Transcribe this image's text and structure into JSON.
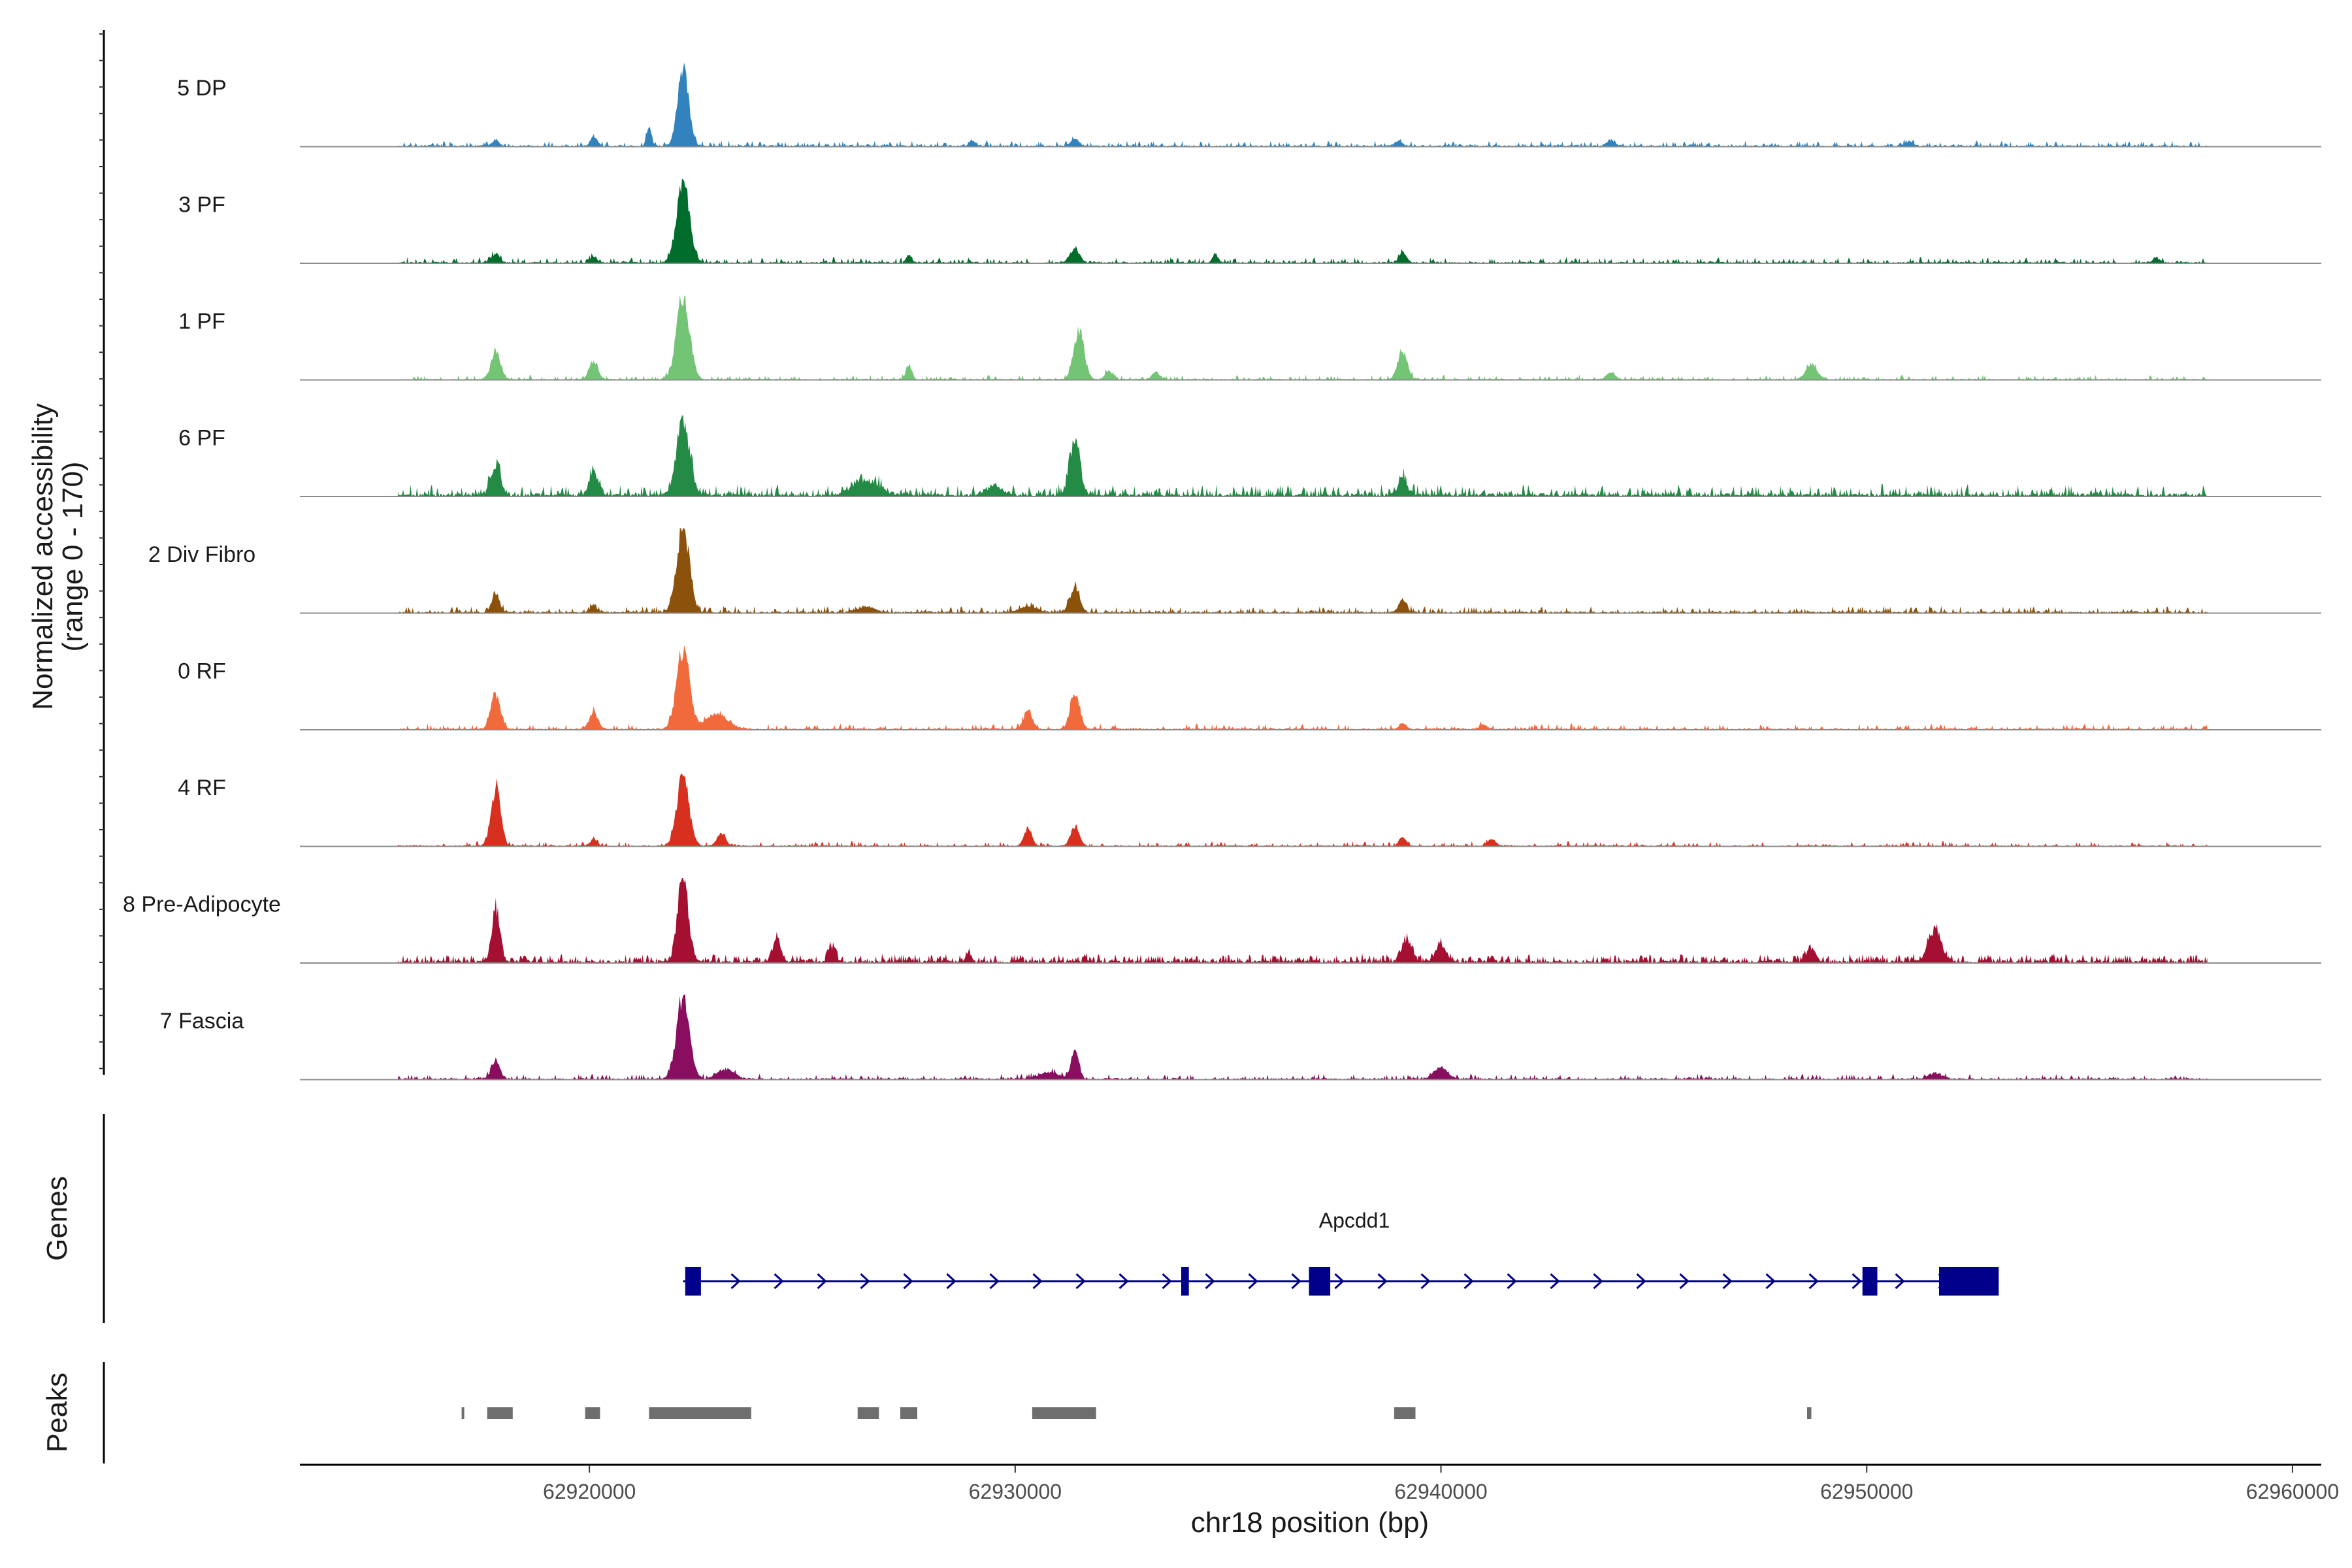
{
  "chart_data": {
    "type": "area",
    "title": "",
    "ylabel": "Normalized accessibility",
    "ylabel_range": "(range 0 - 170)",
    "ylim": [
      0,
      170
    ],
    "xlabel": "chr18 position (bp)",
    "xlim": [
      62913200,
      62960400
    ],
    "x_ticks": [
      62920000,
      62930000,
      62940000,
      62950000,
      62960000
    ],
    "x_tick_labels": [
      "62920000",
      "62930000",
      "62940000",
      "62950000",
      "62960000"
    ],
    "region": [
      62915500,
      62958000
    ],
    "tracks": [
      {
        "name": "5 DP",
        "color": "#3182bd",
        "noise": 6,
        "bumps": 0.25,
        "peaks": [
          [
            62922200,
            150,
            130
          ],
          [
            62921400,
            35,
            60
          ],
          [
            62920100,
            20,
            80
          ],
          [
            62917800,
            10,
            80
          ],
          [
            62931400,
            14,
            90
          ],
          [
            62929000,
            10,
            80
          ],
          [
            62939000,
            10,
            90
          ],
          [
            62944000,
            10,
            100
          ],
          [
            62951000,
            9,
            100
          ]
        ]
      },
      {
        "name": "3 PF",
        "color": "#006d2c",
        "noise": 6,
        "bumps": 0.25,
        "peaks": [
          [
            62922200,
            160,
            150
          ],
          [
            62917800,
            18,
            90
          ],
          [
            62920100,
            12,
            80
          ],
          [
            62931400,
            28,
            110
          ],
          [
            62934700,
            18,
            60
          ],
          [
            62939100,
            20,
            90
          ],
          [
            62927500,
            14,
            60
          ],
          [
            62956800,
            10,
            70
          ]
        ]
      },
      {
        "name": "1 PF",
        "color": "#74c476",
        "noise": 5,
        "bumps": 0.2,
        "peaks": [
          [
            62922200,
            170,
            150
          ],
          [
            62917800,
            55,
            110
          ],
          [
            62920100,
            38,
            100
          ],
          [
            62931500,
            100,
            120
          ],
          [
            62939100,
            58,
            110
          ],
          [
            62948700,
            30,
            130
          ],
          [
            62927500,
            28,
            70
          ],
          [
            62932200,
            18,
            90
          ],
          [
            62933300,
            14,
            90
          ],
          [
            62944000,
            14,
            100
          ]
        ]
      },
      {
        "name": "6 PF",
        "color": "#238b45",
        "noise": 12,
        "bumps": 0.35,
        "peaks": [
          [
            62922200,
            150,
            150
          ],
          [
            62917800,
            60,
            110
          ],
          [
            62920100,
            48,
            100
          ],
          [
            62931400,
            110,
            120
          ],
          [
            62939100,
            38,
            100
          ],
          [
            62926500,
            30,
            300
          ],
          [
            62929500,
            18,
            200
          ]
        ]
      },
      {
        "name": "2 Div Fibro",
        "color": "#8c510a",
        "noise": 7,
        "bumps": 0.25,
        "peaks": [
          [
            62922200,
            170,
            150
          ],
          [
            62917800,
            38,
            90
          ],
          [
            62920100,
            14,
            80
          ],
          [
            62931400,
            50,
            110
          ],
          [
            62939100,
            28,
            90
          ],
          [
            62926500,
            12,
            200
          ],
          [
            62930300,
            12,
            200
          ]
        ]
      },
      {
        "name": "0 RF",
        "color": "#f16a3b",
        "noise": 6,
        "bumps": 0.22,
        "peaks": [
          [
            62922200,
            160,
            150
          ],
          [
            62917800,
            70,
            110
          ],
          [
            62920100,
            36,
            100
          ],
          [
            62931400,
            70,
            110
          ],
          [
            62930300,
            38,
            100
          ],
          [
            62939100,
            14,
            80
          ],
          [
            62941000,
            10,
            80
          ],
          [
            62923000,
            30,
            260
          ]
        ]
      },
      {
        "name": "4 RF",
        "color": "#d7301f",
        "noise": 5,
        "bumps": 0.22,
        "peaks": [
          [
            62922200,
            140,
            140
          ],
          [
            62917800,
            115,
            110
          ],
          [
            62930300,
            36,
            90
          ],
          [
            62931400,
            40,
            100
          ],
          [
            62923100,
            24,
            100
          ],
          [
            62920100,
            14,
            80
          ],
          [
            62939100,
            18,
            80
          ],
          [
            62941200,
            14,
            80
          ]
        ]
      },
      {
        "name": "8 Pre-Adipocyte",
        "color": "#a50f32",
        "noise": 9,
        "bumps": 0.5,
        "peaks": [
          [
            62922200,
            170,
            120
          ],
          [
            62917800,
            110,
            90
          ],
          [
            62924400,
            45,
            100
          ],
          [
            62925700,
            30,
            80
          ],
          [
            62939200,
            45,
            120
          ],
          [
            62940000,
            35,
            120
          ],
          [
            62951600,
            65,
            150
          ],
          [
            62948700,
            30,
            100
          ],
          [
            62928900,
            18,
            70
          ]
        ]
      },
      {
        "name": "7 Fascia",
        "color": "#8a0e5f",
        "noise": 6,
        "bumps": 0.22,
        "peaks": [
          [
            62922200,
            170,
            150
          ],
          [
            62917800,
            35,
            100
          ],
          [
            62931400,
            55,
            90
          ],
          [
            62940000,
            24,
            160
          ],
          [
            62923200,
            20,
            200
          ],
          [
            62930800,
            12,
            250
          ],
          [
            62951600,
            12,
            160
          ]
        ]
      }
    ],
    "genes": [
      {
        "name": "Apcdd1",
        "strand": "+",
        "start": 62922200,
        "end": 62953100,
        "exons": [
          [
            62922250,
            62922620
          ],
          [
            62933900,
            62934080
          ],
          [
            62936900,
            62937400
          ],
          [
            62949900,
            62950250
          ],
          [
            62951700,
            62953100
          ]
        ]
      }
    ],
    "genes_label": "Genes",
    "peaks_label": "Peaks",
    "peaks": [
      [
        62917000,
        62917050
      ],
      [
        62917600,
        62918200
      ],
      [
        62919900,
        62920250
      ],
      [
        62921400,
        62923800
      ],
      [
        62926300,
        62926800
      ],
      [
        62927300,
        62927700
      ],
      [
        62930400,
        62931900
      ],
      [
        62938900,
        62939400
      ],
      [
        62948600,
        62948700
      ]
    ]
  }
}
